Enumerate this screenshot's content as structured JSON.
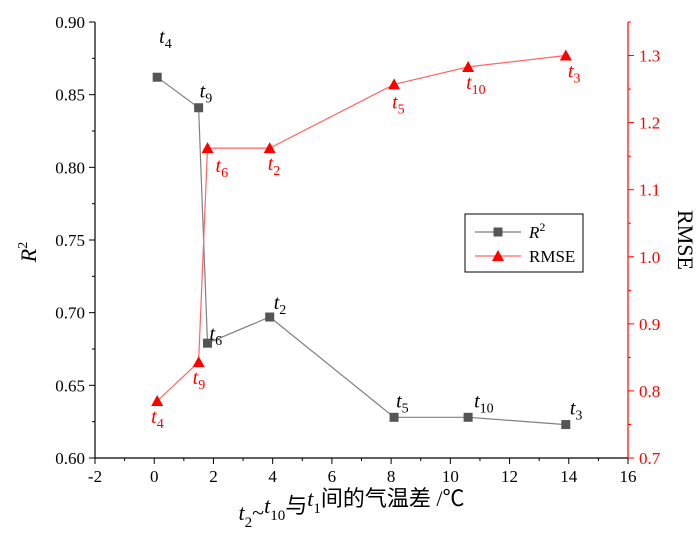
{
  "colors": {
    "r2": "#555555",
    "r2_line": "#808080",
    "rmse": "#ff0000",
    "rmse_line": "#ff6666",
    "axis": "#000000"
  },
  "chart_data": {
    "type": "line",
    "title": "",
    "xlabel": {
      "parts": [
        {
          "t": "t",
          "sub": "2"
        },
        {
          "t": "~"
        },
        {
          "t": "t",
          "sub": "10"
        },
        {
          "t": "与"
        },
        {
          "t": "t",
          "sub": "1"
        },
        {
          "t": "间的气温差 /℃"
        }
      ]
    },
    "ylabel_left": {
      "main": "R",
      "sup": "2"
    },
    "ylabel_right": "RMSE",
    "xlim": [
      -2,
      16
    ],
    "x_ticks": [
      "-2",
      "0",
      "2",
      "4",
      "6",
      "8",
      "10",
      "12",
      "14",
      "16"
    ],
    "ylim_left": [
      0.6,
      0.9
    ],
    "y_left_ticks": [
      "0.60",
      "0.65",
      "0.70",
      "0.75",
      "0.80",
      "0.85",
      "0.90"
    ],
    "ylim_right": [
      0.7,
      1.35
    ],
    "y_right_ticks": [
      "0.7",
      "0.8",
      "0.9",
      "1.0",
      "1.1",
      "1.2",
      "1.3"
    ],
    "legend": {
      "placement": "center-right",
      "entries": [
        {
          "main": "R",
          "sup": "2"
        },
        {
          "main": "RMSE"
        }
      ]
    },
    "series": [
      {
        "name": "R2",
        "axis": "left",
        "marker": "square",
        "points": [
          {
            "x": 0.1,
            "y": 0.862,
            "label": "t",
            "sub": "4"
          },
          {
            "x": 1.5,
            "y": 0.841,
            "label": "t",
            "sub": "9"
          },
          {
            "x": 1.8,
            "y": 0.679,
            "label": "t",
            "sub": "6"
          },
          {
            "x": 3.9,
            "y": 0.697,
            "label": "t",
            "sub": "2"
          },
          {
            "x": 8.1,
            "y": 0.628,
            "label": "t",
            "sub": "5"
          },
          {
            "x": 10.6,
            "y": 0.628,
            "label": "t",
            "sub": "10"
          },
          {
            "x": 13.9,
            "y": 0.623,
            "label": "t",
            "sub": "3"
          }
        ]
      },
      {
        "name": "RMSE",
        "axis": "right",
        "marker": "triangle",
        "points": [
          {
            "x": 0.1,
            "y": 0.785,
            "label": "t",
            "sub": "4"
          },
          {
            "x": 1.5,
            "y": 0.843,
            "label": "t",
            "sub": "9"
          },
          {
            "x": 1.8,
            "y": 1.162,
            "label": "t",
            "sub": "6"
          },
          {
            "x": 3.9,
            "y": 1.162,
            "label": "t",
            "sub": "2"
          },
          {
            "x": 8.1,
            "y": 1.257,
            "label": "t",
            "sub": "5"
          },
          {
            "x": 10.6,
            "y": 1.283,
            "label": "t",
            "sub": "10"
          },
          {
            "x": 13.9,
            "y": 1.3,
            "label": "t",
            "sub": "3"
          }
        ]
      }
    ]
  }
}
